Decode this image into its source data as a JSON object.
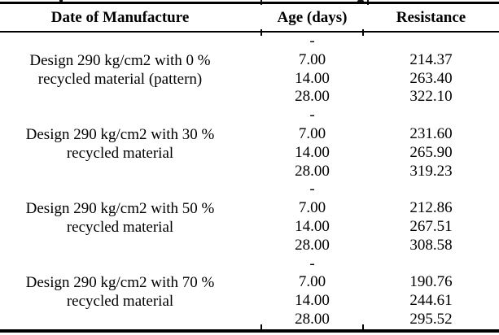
{
  "page": {
    "background": "#ffffff",
    "text_color": "#000000",
    "rule_color": "#000000"
  },
  "table": {
    "headers": [
      "Date of Manufacture",
      "Age (days)",
      "Resistance"
    ],
    "groups": [
      {
        "label_line1": "Design 290 kg/cm2 with 0 %",
        "label_line2": "recycled material (pattern)",
        "rows": [
          {
            "age": "-",
            "resistance": ""
          },
          {
            "age": "7.00",
            "resistance": "214.37"
          },
          {
            "age": "14.00",
            "resistance": "263.40"
          },
          {
            "age": "28.00",
            "resistance": "322.10"
          }
        ]
      },
      {
        "label_line1": "Design 290 kg/cm2 with 30 %",
        "label_line2": "recycled material",
        "rows": [
          {
            "age": "-",
            "resistance": ""
          },
          {
            "age": "7.00",
            "resistance": "231.60"
          },
          {
            "age": "14.00",
            "resistance": "265.90"
          },
          {
            "age": "28.00",
            "resistance": "319.23"
          }
        ]
      },
      {
        "label_line1": "Design 290 kg/cm2 with 50 %",
        "label_line2": "recycled material",
        "rows": [
          {
            "age": "-",
            "resistance": ""
          },
          {
            "age": "7.00",
            "resistance": "212.86"
          },
          {
            "age": "14.00",
            "resistance": "267.51"
          },
          {
            "age": "28.00",
            "resistance": "308.58"
          }
        ]
      },
      {
        "label_line1": "Design 290 kg/cm2 with 70 %",
        "label_line2": "recycled material",
        "rows": [
          {
            "age": "-",
            "resistance": ""
          },
          {
            "age": "7.00",
            "resistance": "190.76"
          },
          {
            "age": "14.00",
            "resistance": "244.61"
          },
          {
            "age": "28.00",
            "resistance": "295.52"
          }
        ]
      }
    ]
  },
  "chart_data": {
    "type": "table",
    "columns": [
      "Date of Manufacture",
      "Age (days)",
      "Resistance"
    ],
    "rows": [
      [
        "Design 290 kg/cm2 with 0 % recycled material (pattern)",
        "-",
        null
      ],
      [
        "Design 290 kg/cm2 with 0 % recycled material (pattern)",
        7.0,
        214.37
      ],
      [
        "Design 290 kg/cm2 with 0 % recycled material (pattern)",
        14.0,
        263.4
      ],
      [
        "Design 290 kg/cm2 with 0 % recycled material (pattern)",
        28.0,
        322.1
      ],
      [
        "Design 290 kg/cm2 with 30 % recycled material",
        "-",
        null
      ],
      [
        "Design 290 kg/cm2 with 30 % recycled material",
        7.0,
        231.6
      ],
      [
        "Design 290 kg/cm2 with 30 % recycled material",
        14.0,
        265.9
      ],
      [
        "Design 290 kg/cm2 with 30 % recycled material",
        28.0,
        319.23
      ],
      [
        "Design 290 kg/cm2 with 50 % recycled material",
        "-",
        null
      ],
      [
        "Design 290 kg/cm2 with 50 % recycled material",
        7.0,
        212.86
      ],
      [
        "Design 290 kg/cm2 with 50 % recycled material",
        14.0,
        267.51
      ],
      [
        "Design 290 kg/cm2 with 50 % recycled material",
        28.0,
        308.58
      ],
      [
        "Design 290 kg/cm2 with 70 % recycled material",
        "-",
        null
      ],
      [
        "Design 290 kg/cm2 with 70 % recycled material",
        7.0,
        190.76
      ],
      [
        "Design 290 kg/cm2 with 70 % recycled material",
        14.0,
        244.61
      ],
      [
        "Design 290 kg/cm2 with 70 % recycled material",
        28.0,
        295.52
      ]
    ]
  }
}
